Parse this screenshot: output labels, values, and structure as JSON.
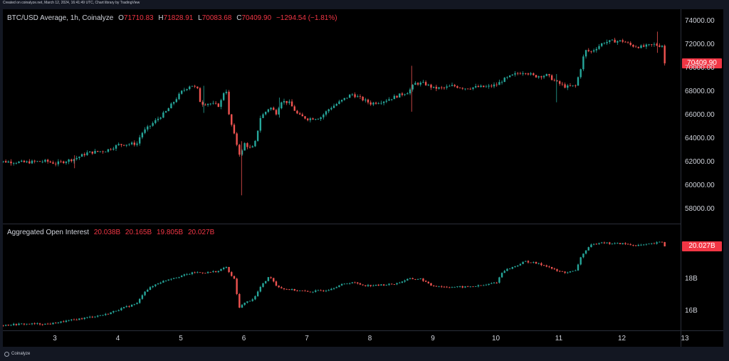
{
  "header": {
    "caption": "Created on coinalyze.net, March 12, 2024, 16:41:49 UTC, Chart library by TradingView"
  },
  "footer": {
    "brand": "Coinalyze"
  },
  "colors": {
    "up": "#26a69a",
    "down": "#ef5350",
    "background": "#000000",
    "last_value": "#f23645"
  },
  "chart_data": [
    {
      "type": "candlestick",
      "title": "BTC/USD Average, 1h, Coinalyze",
      "ohlc": {
        "o_label": "O",
        "o": "71710.83",
        "h_label": "H",
        "h": "71828.91",
        "l_label": "L",
        "l": "70083.68",
        "c_label": "C",
        "c": "70409.90",
        "change": "−1294.54 (−1.81%)"
      },
      "last_value": "70409.90",
      "ylim": [
        56800,
        75000
      ],
      "y_ticks": [
        "74000.00",
        "72000.00",
        "70000.00",
        "68000.00",
        "66000.00",
        "64000.00",
        "62000.00",
        "60000.00",
        "58000.00"
      ],
      "x_ticks": [
        "3",
        "4",
        "5",
        "6",
        "7",
        "8",
        "9",
        "10",
        "11",
        "12",
        "13"
      ],
      "close_path": [
        [
          2.0,
          62100
        ],
        [
          2.5,
          62000
        ],
        [
          2.85,
          62100
        ],
        [
          3.0,
          61900
        ],
        [
          3.3,
          62300
        ],
        [
          3.5,
          62800
        ],
        [
          3.8,
          63000
        ],
        [
          4.0,
          63500
        ],
        [
          4.3,
          63600
        ],
        [
          4.35,
          64400
        ],
        [
          4.6,
          65600
        ],
        [
          4.75,
          66300
        ],
        [
          5.0,
          68000
        ],
        [
          5.15,
          68600
        ],
        [
          5.25,
          68200
        ],
        [
          5.3,
          67000
        ],
        [
          5.45,
          67000
        ],
        [
          5.6,
          66800
        ],
        [
          5.7,
          68500
        ],
        [
          5.75,
          66000
        ],
        [
          5.85,
          64000
        ],
        [
          5.93,
          62500
        ],
        [
          6.0,
          63600
        ],
        [
          6.08,
          63200
        ],
        [
          6.15,
          63300
        ],
        [
          6.25,
          65800
        ],
        [
          6.4,
          66700
        ],
        [
          6.5,
          66200
        ],
        [
          6.58,
          67200
        ],
        [
          6.7,
          67100
        ],
        [
          6.85,
          66000
        ],
        [
          7.0,
          65700
        ],
        [
          7.2,
          65800
        ],
        [
          7.35,
          66600
        ],
        [
          7.5,
          67100
        ],
        [
          7.7,
          67800
        ],
        [
          7.85,
          67400
        ],
        [
          8.0,
          67000
        ],
        [
          8.2,
          67200
        ],
        [
          8.4,
          67600
        ],
        [
          8.6,
          68000
        ],
        [
          8.7,
          68700
        ],
        [
          8.85,
          68700
        ],
        [
          9.0,
          68300
        ],
        [
          9.15,
          68300
        ],
        [
          9.3,
          68500
        ],
        [
          9.5,
          68300
        ],
        [
          9.7,
          68400
        ],
        [
          9.85,
          68400
        ],
        [
          10.0,
          68600
        ],
        [
          10.1,
          69000
        ],
        [
          10.3,
          69500
        ],
        [
          10.45,
          69700
        ],
        [
          10.6,
          69300
        ],
        [
          10.8,
          69400
        ],
        [
          10.95,
          68800
        ],
        [
          11.1,
          68400
        ],
        [
          11.25,
          68500
        ],
        [
          11.32,
          69700
        ],
        [
          11.4,
          71500
        ],
        [
          11.5,
          71400
        ],
        [
          11.6,
          71800
        ],
        [
          11.7,
          72200
        ],
        [
          11.85,
          72300
        ],
        [
          12.0,
          72300
        ],
        [
          12.15,
          71900
        ],
        [
          12.3,
          71800
        ],
        [
          12.5,
          72000
        ],
        [
          12.6,
          71900
        ],
        [
          12.66,
          72000
        ],
        [
          12.69,
          71600
        ],
        [
          12.7,
          70410
        ]
      ],
      "wicks": [
        [
          3.3,
          61500,
          62600
        ],
        [
          5.35,
          66200,
          68500
        ],
        [
          5.95,
          59200,
          63800
        ],
        [
          6.55,
          65800,
          67500
        ],
        [
          8.65,
          66300,
          70200
        ],
        [
          10.95,
          67100,
          69500
        ],
        [
          12.55,
          71300,
          73100
        ]
      ]
    },
    {
      "type": "candlestick",
      "title": "Aggregated Open Interest",
      "ohlc": {
        "o": "20.038B",
        "h": "20.165B",
        "l": "19.805B",
        "c": "20.027B"
      },
      "last_value": "20.027B",
      "ylim": [
        14.8,
        21.4
      ],
      "y_ticks": [
        "18B",
        "16B"
      ],
      "x_ticks": [
        "3",
        "4",
        "5",
        "6",
        "7",
        "8",
        "9",
        "10",
        "11",
        "12",
        "13"
      ],
      "close_path": [
        [
          2.0,
          15.1
        ],
        [
          2.5,
          15.2
        ],
        [
          2.9,
          15.2
        ],
        [
          3.2,
          15.4
        ],
        [
          3.5,
          15.6
        ],
        [
          3.8,
          15.8
        ],
        [
          4.0,
          16.1
        ],
        [
          4.3,
          16.5
        ],
        [
          4.4,
          17.2
        ],
        [
          4.6,
          17.7
        ],
        [
          4.8,
          18.0
        ],
        [
          5.0,
          18.2
        ],
        [
          5.2,
          18.4
        ],
        [
          5.4,
          18.4
        ],
        [
          5.6,
          18.5
        ],
        [
          5.7,
          18.8
        ],
        [
          5.75,
          18.4
        ],
        [
          5.85,
          17.9
        ],
        [
          5.9,
          16.2
        ],
        [
          6.0,
          16.5
        ],
        [
          6.15,
          16.8
        ],
        [
          6.25,
          17.5
        ],
        [
          6.4,
          18.2
        ],
        [
          6.5,
          17.6
        ],
        [
          6.6,
          17.4
        ],
        [
          6.8,
          17.3
        ],
        [
          7.0,
          17.2
        ],
        [
          7.3,
          17.3
        ],
        [
          7.5,
          17.6
        ],
        [
          7.7,
          17.8
        ],
        [
          7.9,
          17.6
        ],
        [
          8.1,
          17.6
        ],
        [
          8.4,
          17.7
        ],
        [
          8.6,
          18.0
        ],
        [
          8.8,
          18.0
        ],
        [
          8.95,
          17.6
        ],
        [
          9.2,
          17.5
        ],
        [
          9.5,
          17.5
        ],
        [
          9.8,
          17.6
        ],
        [
          10.0,
          17.8
        ],
        [
          10.1,
          18.5
        ],
        [
          10.3,
          18.8
        ],
        [
          10.45,
          19.1
        ],
        [
          10.6,
          19.0
        ],
        [
          10.8,
          18.8
        ],
        [
          10.95,
          18.5
        ],
        [
          11.1,
          18.4
        ],
        [
          11.25,
          18.5
        ],
        [
          11.35,
          19.5
        ],
        [
          11.5,
          20.1
        ],
        [
          11.65,
          20.3
        ],
        [
          11.8,
          20.2
        ],
        [
          12.0,
          20.2
        ],
        [
          12.15,
          20.1
        ],
        [
          12.3,
          20.1
        ],
        [
          12.5,
          20.2
        ],
        [
          12.6,
          20.3
        ],
        [
          12.66,
          20.3
        ],
        [
          12.7,
          20.027
        ]
      ]
    }
  ]
}
